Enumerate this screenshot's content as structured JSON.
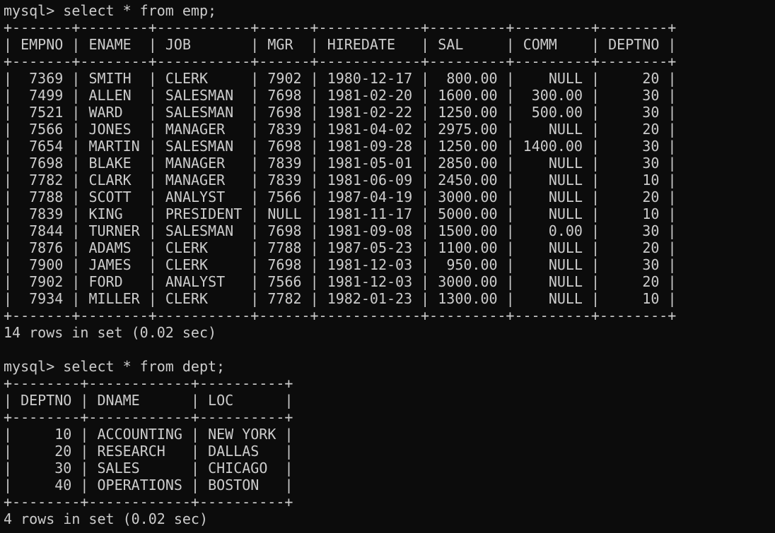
{
  "sessions": [
    {
      "prompt": "mysql>",
      "command": "select * from emp;",
      "columns": [
        "EMPNO",
        "ENAME",
        "JOB",
        "MGR",
        "HIREDATE",
        "SAL",
        "COMM",
        "DEPTNO"
      ],
      "rows": [
        [
          "7369",
          "SMITH",
          "CLERK",
          "7902",
          "1980-12-17",
          "800.00",
          "NULL",
          "20"
        ],
        [
          "7499",
          "ALLEN",
          "SALESMAN",
          "7698",
          "1981-02-20",
          "1600.00",
          "300.00",
          "30"
        ],
        [
          "7521",
          "WARD",
          "SALESMAN",
          "7698",
          "1981-02-22",
          "1250.00",
          "500.00",
          "30"
        ],
        [
          "7566",
          "JONES",
          "MANAGER",
          "7839",
          "1981-04-02",
          "2975.00",
          "NULL",
          "20"
        ],
        [
          "7654",
          "MARTIN",
          "SALESMAN",
          "7698",
          "1981-09-28",
          "1250.00",
          "1400.00",
          "30"
        ],
        [
          "7698",
          "BLAKE",
          "MANAGER",
          "7839",
          "1981-05-01",
          "2850.00",
          "NULL",
          "30"
        ],
        [
          "7782",
          "CLARK",
          "MANAGER",
          "7839",
          "1981-06-09",
          "2450.00",
          "NULL",
          "10"
        ],
        [
          "7788",
          "SCOTT",
          "ANALYST",
          "7566",
          "1987-04-19",
          "3000.00",
          "NULL",
          "20"
        ],
        [
          "7839",
          "KING",
          "PRESIDENT",
          "NULL",
          "1981-11-17",
          "5000.00",
          "NULL",
          "10"
        ],
        [
          "7844",
          "TURNER",
          "SALESMAN",
          "7698",
          "1981-09-08",
          "1500.00",
          "0.00",
          "30"
        ],
        [
          "7876",
          "ADAMS",
          "CLERK",
          "7788",
          "1987-05-23",
          "1100.00",
          "NULL",
          "20"
        ],
        [
          "7900",
          "JAMES",
          "CLERK",
          "7698",
          "1981-12-03",
          "950.00",
          "NULL",
          "30"
        ],
        [
          "7902",
          "FORD",
          "ANALYST",
          "7566",
          "1981-12-03",
          "3000.00",
          "NULL",
          "20"
        ],
        [
          "7934",
          "MILLER",
          "CLERK",
          "7782",
          "1982-01-23",
          "1300.00",
          "NULL",
          "10"
        ]
      ],
      "footer": "14 rows in set (0.02 sec)"
    },
    {
      "prompt": "mysql>",
      "command": "select * from dept;",
      "columns": [
        "DEPTNO",
        "DNAME",
        "LOC"
      ],
      "rows": [
        [
          "10",
          "ACCOUNTING",
          "NEW YORK"
        ],
        [
          "20",
          "RESEARCH",
          "DALLAS"
        ],
        [
          "30",
          "SALES",
          "CHICAGO"
        ],
        [
          "40",
          "OPERATIONS",
          "BOSTON"
        ]
      ],
      "footer": "4 rows in set (0.02 sec)"
    }
  ]
}
